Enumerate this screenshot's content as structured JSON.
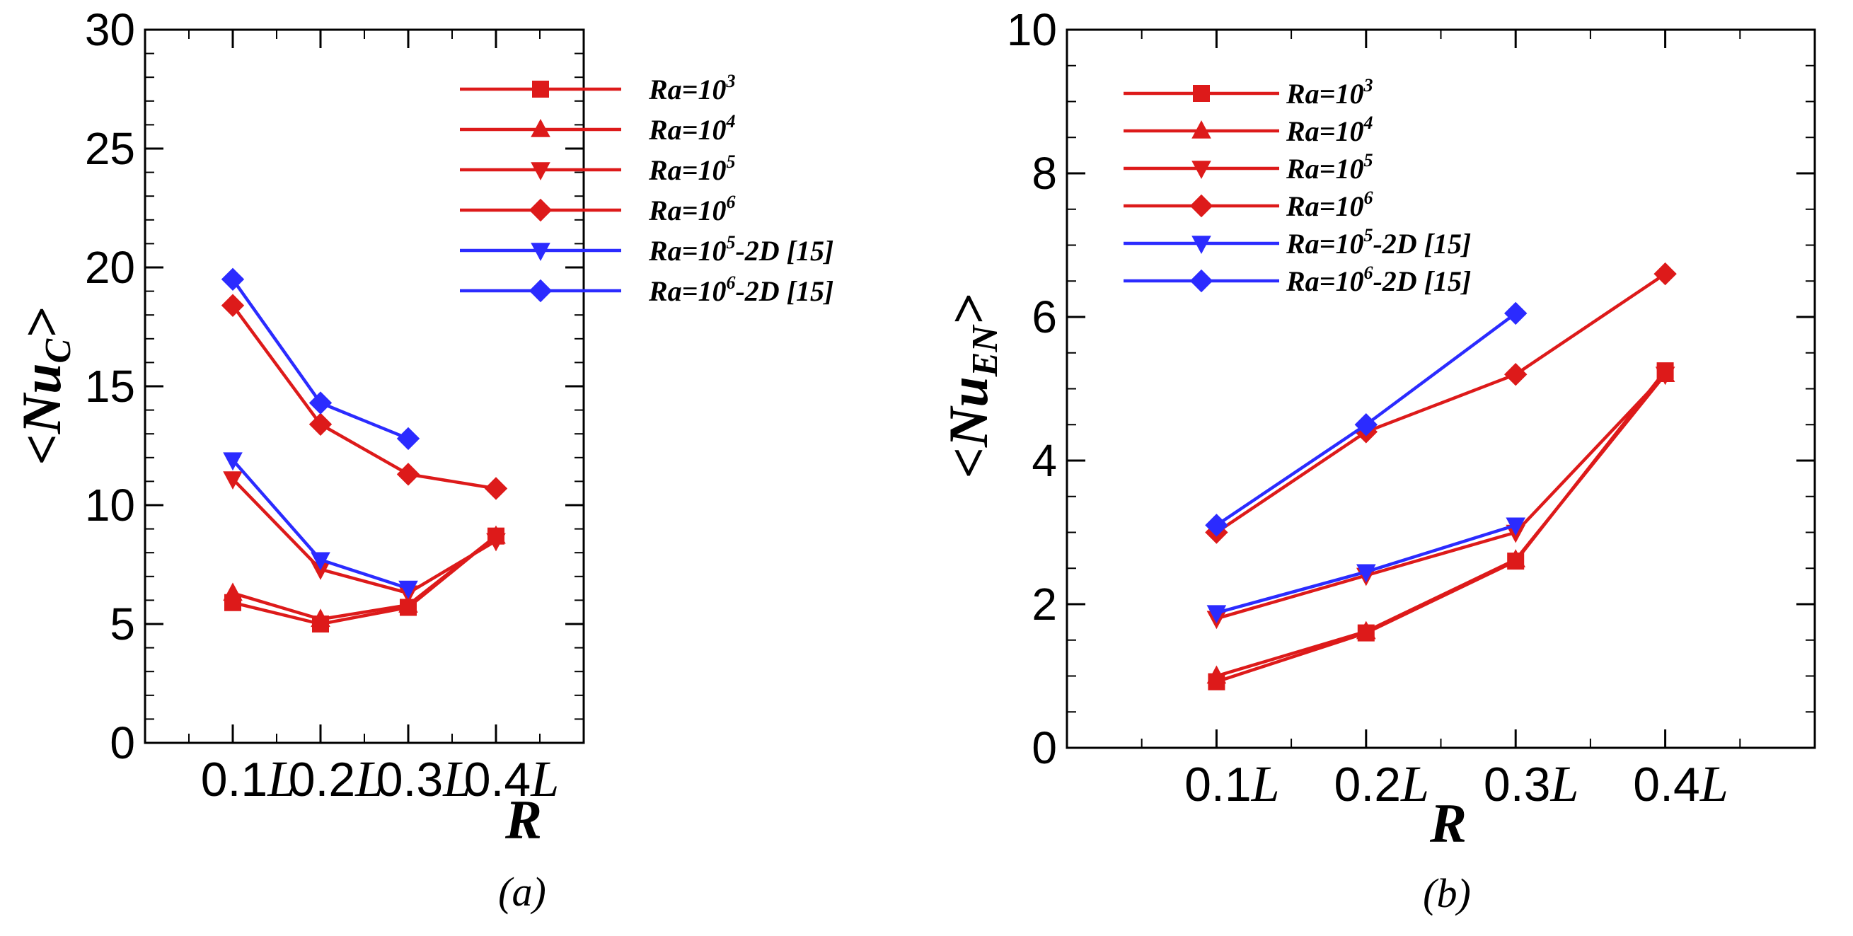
{
  "colors": {
    "red": "#dd1a1a",
    "blue": "#2b2bff",
    "axis": "#000000"
  },
  "chart_data": [
    {
      "id": "a",
      "type": "line",
      "caption": "(a)",
      "xlabel": "R",
      "ylabel": "<Nu_C>",
      "ylabel_main": "<Nu",
      "ylabel_sub": "C",
      "ylabel_close": ">",
      "ylim": [
        0,
        30
      ],
      "yticks": [
        "0",
        "5",
        "10",
        "15",
        "20",
        "25",
        "30"
      ],
      "x_range": [
        0,
        0.5
      ],
      "categories": [
        {
          "num": "0.1",
          "unit": "L",
          "x": 0.1
        },
        {
          "num": "0.2",
          "unit": "L",
          "x": 0.2
        },
        {
          "num": "0.3",
          "unit": "L",
          "x": 0.3
        },
        {
          "num": "0.4",
          "unit": "L",
          "x": 0.4
        }
      ],
      "legend_position": "top-right",
      "series": [
        {
          "name": "Ra=10^3",
          "label_base": "Ra=10",
          "label_exp": "3",
          "label_suffix": "",
          "color": "red",
          "marker": "square",
          "x": [
            0.1,
            0.2,
            0.3,
            0.4
          ],
          "values": [
            5.9,
            5.0,
            5.7,
            8.7
          ]
        },
        {
          "name": "Ra=10^4",
          "label_base": "Ra=10",
          "label_exp": "4",
          "label_suffix": "",
          "color": "red",
          "marker": "triangle-up",
          "x": [
            0.1,
            0.2,
            0.3,
            0.4
          ],
          "values": [
            6.3,
            5.2,
            5.8,
            8.7
          ]
        },
        {
          "name": "Ra=10^5",
          "label_base": "Ra=10",
          "label_exp": "5",
          "label_suffix": "",
          "color": "red",
          "marker": "triangle-down",
          "x": [
            0.1,
            0.2,
            0.3,
            0.4
          ],
          "values": [
            11.1,
            7.3,
            6.3,
            8.5
          ]
        },
        {
          "name": "Ra=10^6",
          "label_base": "Ra=10",
          "label_exp": "6",
          "label_suffix": "",
          "color": "red",
          "marker": "diamond",
          "x": [
            0.1,
            0.2,
            0.3,
            0.4
          ],
          "values": [
            18.4,
            13.4,
            11.3,
            10.7
          ]
        },
        {
          "name": "Ra=10^5-2D [15]",
          "label_base": "Ra=10",
          "label_exp": "5",
          "label_suffix": "-2D [15]",
          "color": "blue",
          "marker": "triangle-down",
          "x": [
            0.1,
            0.2,
            0.3
          ],
          "values": [
            11.9,
            7.7,
            6.5
          ]
        },
        {
          "name": "Ra=10^6-2D [15]",
          "label_base": "Ra=10",
          "label_exp": "6",
          "label_suffix": "-2D [15]",
          "color": "blue",
          "marker": "diamond",
          "x": [
            0.1,
            0.2,
            0.3
          ],
          "values": [
            19.5,
            14.3,
            12.8
          ]
        }
      ]
    },
    {
      "id": "b",
      "type": "line",
      "caption": "(b)",
      "xlabel": "R",
      "ylabel": "<Nu_EN>",
      "ylabel_main": "<Nu",
      "ylabel_sub": "EN",
      "ylabel_close": ">",
      "ylim": [
        0,
        10
      ],
      "yticks": [
        "0",
        "2",
        "4",
        "6",
        "8",
        "10"
      ],
      "x_range": [
        0,
        0.5
      ],
      "categories": [
        {
          "num": "0.1",
          "unit": "L",
          "x": 0.1
        },
        {
          "num": "0.2",
          "unit": "L",
          "x": 0.2
        },
        {
          "num": "0.3",
          "unit": "L",
          "x": 0.3
        },
        {
          "num": "0.4",
          "unit": "L",
          "x": 0.4
        }
      ],
      "legend_position": "top-left",
      "series": [
        {
          "name": "Ra=10^3",
          "label_base": "Ra=10",
          "label_exp": "3",
          "label_suffix": "",
          "color": "red",
          "marker": "square",
          "x": [
            0.1,
            0.2,
            0.3,
            0.4
          ],
          "values": [
            0.92,
            1.6,
            2.6,
            5.25
          ]
        },
        {
          "name": "Ra=10^4",
          "label_base": "Ra=10",
          "label_exp": "4",
          "label_suffix": "",
          "color": "red",
          "marker": "triangle-up",
          "x": [
            0.1,
            0.2,
            0.3,
            0.4
          ],
          "values": [
            1.0,
            1.62,
            2.62,
            5.2
          ]
        },
        {
          "name": "Ra=10^5",
          "label_base": "Ra=10",
          "label_exp": "5",
          "label_suffix": "",
          "color": "red",
          "marker": "triangle-down",
          "x": [
            0.1,
            0.2,
            0.3,
            0.4
          ],
          "values": [
            1.8,
            2.4,
            3.0,
            5.2
          ]
        },
        {
          "name": "Ra=10^6",
          "label_base": "Ra=10",
          "label_exp": "6",
          "label_suffix": "",
          "color": "red",
          "marker": "diamond",
          "x": [
            0.1,
            0.2,
            0.3,
            0.4
          ],
          "values": [
            3.0,
            4.4,
            5.2,
            6.6
          ]
        },
        {
          "name": "Ra=10^5-2D [15]",
          "label_base": "Ra=10",
          "label_exp": "5",
          "label_suffix": "-2D [15]",
          "color": "blue",
          "marker": "triangle-down",
          "x": [
            0.1,
            0.2,
            0.3
          ],
          "values": [
            1.88,
            2.45,
            3.1
          ]
        },
        {
          "name": "Ra=10^6-2D [15]",
          "label_base": "Ra=10",
          "label_exp": "6",
          "label_suffix": "-2D [15]",
          "color": "blue",
          "marker": "diamond",
          "x": [
            0.1,
            0.2,
            0.3
          ],
          "values": [
            3.1,
            4.5,
            6.05
          ]
        }
      ]
    }
  ]
}
